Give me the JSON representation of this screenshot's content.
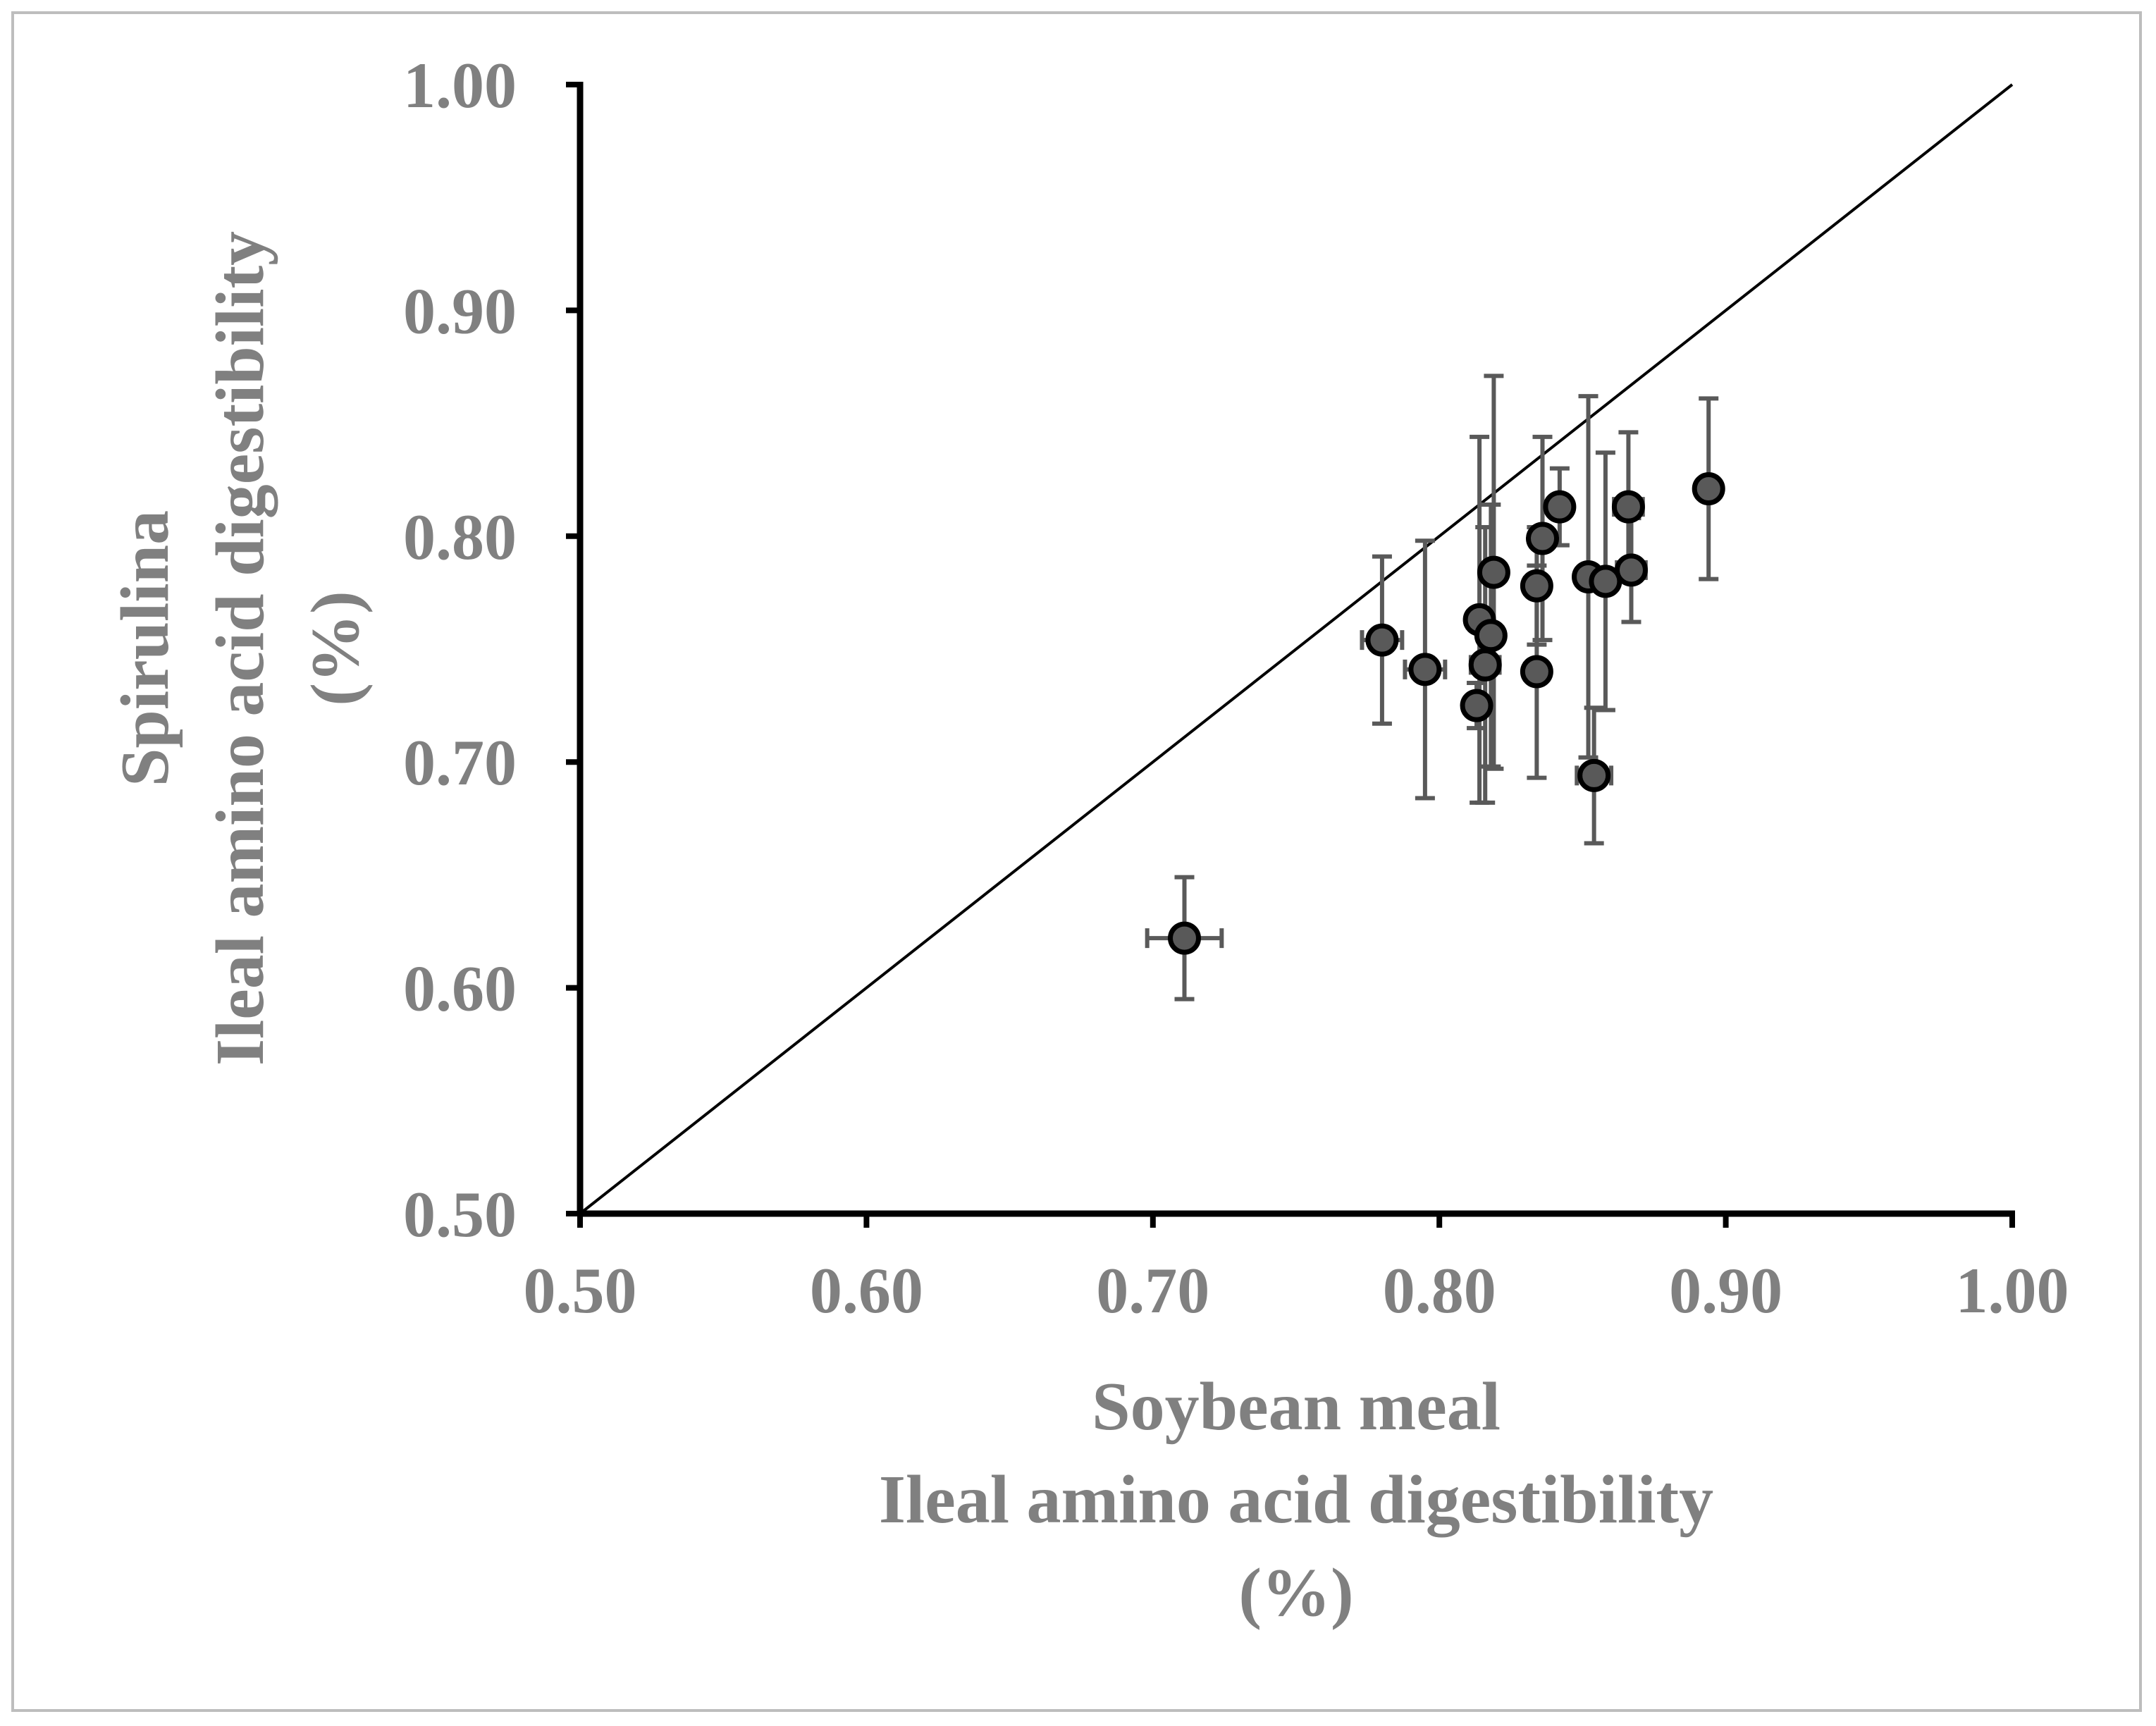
{
  "chart_data": {
    "type": "scatter",
    "xlabel_lines": [
      "Soybean meal",
      "Ileal amino acid digestibility",
      "(%)"
    ],
    "ylabel_lines": [
      "Spirulina",
      "Ileal amino acid digestibility",
      "(%)"
    ],
    "xlim": [
      0.5,
      1.0
    ],
    "ylim": [
      0.5,
      1.0
    ],
    "x_ticks": [
      "0.50",
      "0.60",
      "0.70",
      "0.80",
      "0.90",
      "1.00"
    ],
    "y_ticks": [
      "0.50",
      "0.60",
      "0.70",
      "0.80",
      "0.90",
      "1.00"
    ],
    "reference_line": {
      "type": "identity",
      "from": [
        0.5,
        0.5
      ],
      "to": [
        1.0,
        1.0
      ]
    },
    "grid": false,
    "legend": "none",
    "colors": {
      "marker_fill": "#595959",
      "marker_edge": "#000000",
      "error_bar": "#595959",
      "text": "#808080"
    },
    "points": [
      {
        "x": 0.711,
        "y": 0.622,
        "xerr": 0.013,
        "yerr": 0.027
      },
      {
        "x": 0.78,
        "y": 0.754,
        "xerr": 0.007,
        "yerr": 0.037
      },
      {
        "x": 0.795,
        "y": 0.741,
        "xerr": 0.007,
        "yerr": 0.057
      },
      {
        "x": 0.813,
        "y": 0.725,
        "xerr": 0.004,
        "yerr": 0.01
      },
      {
        "x": 0.814,
        "y": 0.763,
        "xerr": 0.004,
        "yerr": 0.081
      },
      {
        "x": 0.816,
        "y": 0.743,
        "xerr": 0.005,
        "yerr": 0.061
      },
      {
        "x": 0.818,
        "y": 0.756,
        "xerr": 0.004,
        "yerr": 0.058
      },
      {
        "x": 0.819,
        "y": 0.784,
        "xerr": 0.004,
        "yerr": 0.087
      },
      {
        "x": 0.834,
        "y": 0.778,
        "xerr": 0.004,
        "yerr": 0.026
      },
      {
        "x": 0.834,
        "y": 0.74,
        "xerr": 0.004,
        "yerr": 0.047
      },
      {
        "x": 0.836,
        "y": 0.799,
        "xerr": 0.004,
        "yerr": 0.045
      },
      {
        "x": 0.842,
        "y": 0.813,
        "xerr": 0.004,
        "yerr": 0.017
      },
      {
        "x": 0.852,
        "y": 0.782,
        "xerr": 0.004,
        "yerr": 0.08
      },
      {
        "x": 0.854,
        "y": 0.694,
        "xerr": 0.006,
        "yerr": 0.03
      },
      {
        "x": 0.858,
        "y": 0.78,
        "xerr": 0.004,
        "yerr": 0.057
      },
      {
        "x": 0.866,
        "y": 0.813,
        "xerr": 0.005,
        "yerr": 0.033
      },
      {
        "x": 0.867,
        "y": 0.785,
        "xerr": 0.005,
        "yerr": 0.023
      },
      {
        "x": 0.894,
        "y": 0.821,
        "xerr": 0.004,
        "yerr": 0.04
      }
    ]
  }
}
